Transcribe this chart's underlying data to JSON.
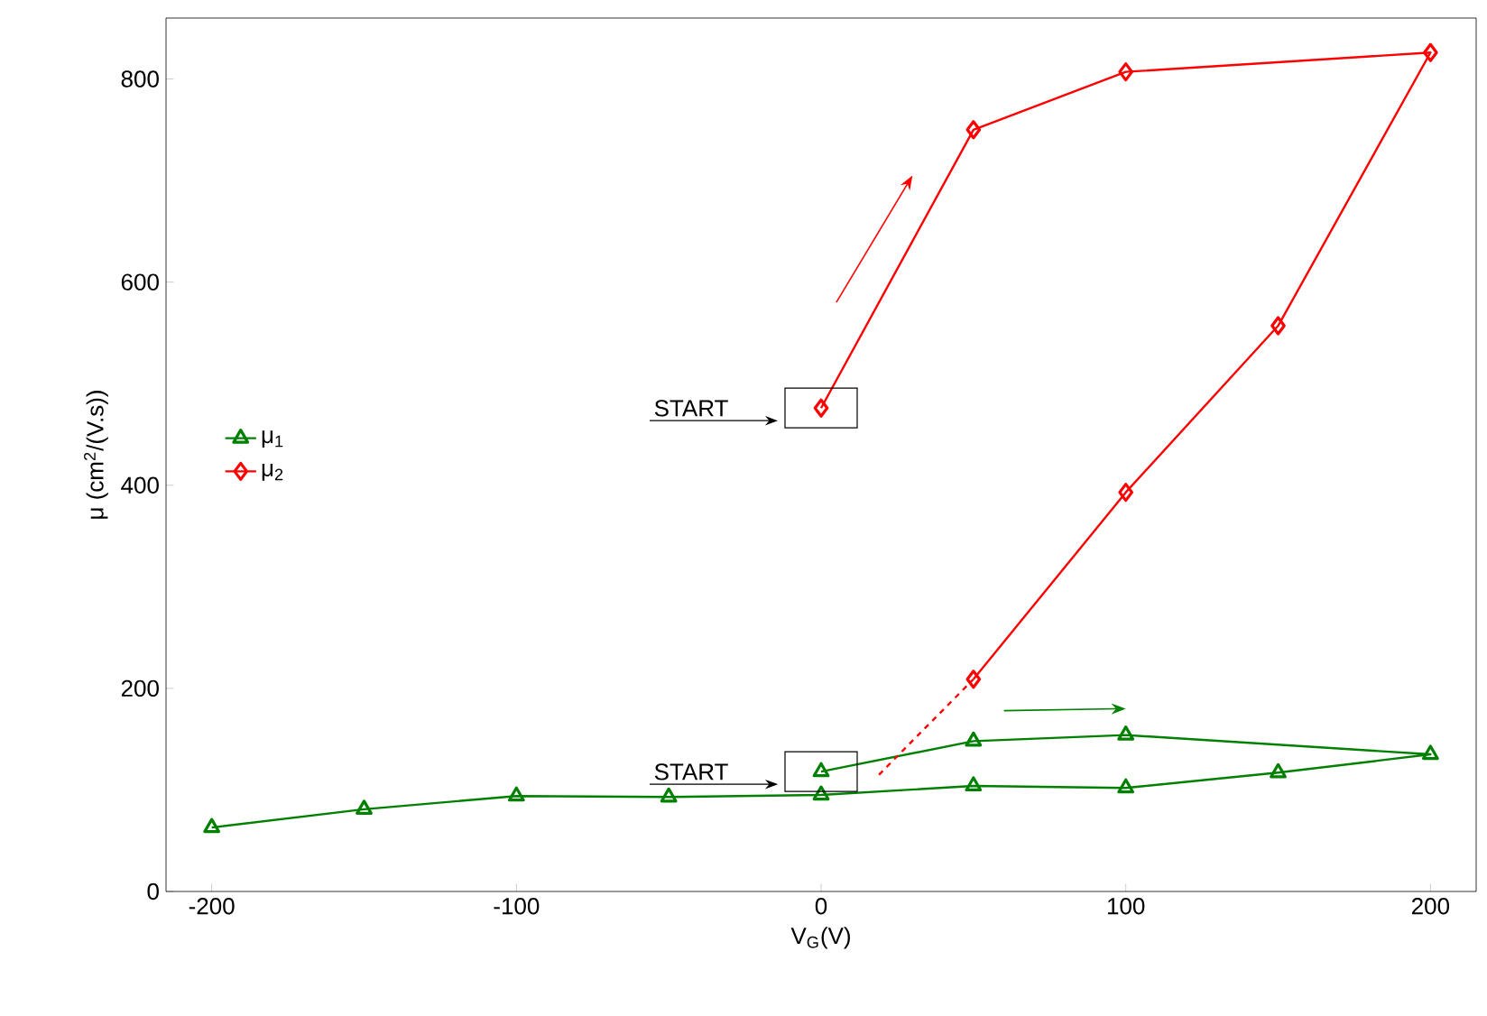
{
  "chart_data": {
    "type": "line",
    "xlabel": "V$_{G}$(V)",
    "ylabel": "μ (cm$^{2}$/(V.s))",
    "xlim": [
      -215,
      215
    ],
    "xticks": [
      -200,
      -100,
      0,
      100,
      200
    ],
    "ylim": [
      0,
      860
    ],
    "yticks": [
      0,
      200,
      400,
      600,
      800
    ],
    "grid": false,
    "legend": "left",
    "series": [
      {
        "name": "μ$_{1}$",
        "color": "#008000",
        "marker": "triangle",
        "x": [
          0,
          50,
          100,
          200,
          150,
          100,
          50,
          0,
          -50,
          -100,
          -150,
          -200
        ],
        "values": [
          118,
          148,
          154,
          135,
          117,
          102,
          104,
          95,
          93,
          94,
          81,
          63
        ]
      },
      {
        "name": "μ$_{2}$",
        "color": "#ff0000",
        "marker": "diamond",
        "x": [
          0,
          50,
          100,
          200,
          150,
          100,
          50
        ],
        "values": [
          476,
          750,
          807,
          826,
          557,
          393,
          209
        ]
      },
      {
        "color": "#ff0000",
        "marker": "none",
        "line_style": "dashed",
        "x": [
          19,
          50
        ],
        "values": [
          115,
          209
        ]
      }
    ],
    "annotations": [
      "START",
      "START"
    ]
  }
}
